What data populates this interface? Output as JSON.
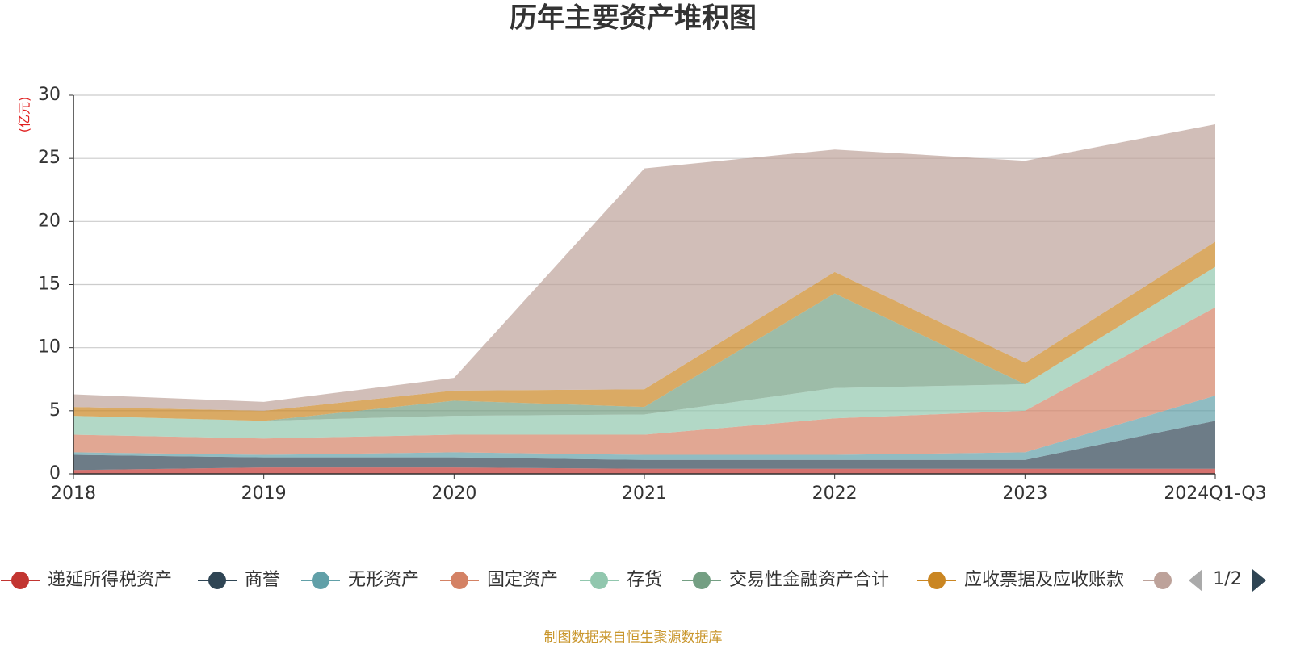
{
  "chart_data": {
    "type": "stacked_area",
    "title": "历年主要资产堆积图",
    "y_label": "(亿元)",
    "categories": [
      "2018",
      "2019",
      "2020",
      "2021",
      "2022",
      "2023",
      "2024Q1-Q3"
    ],
    "series": [
      {
        "name": "递延所得税资产",
        "color": "#c23531",
        "values": [
          0.3,
          0.5,
          0.5,
          0.4,
          0.4,
          0.4,
          0.4
        ]
      },
      {
        "name": "商誉",
        "color": "#2f4554",
        "values": [
          1.2,
          0.8,
          0.8,
          0.7,
          0.7,
          0.7,
          3.8
        ]
      },
      {
        "name": "无形资产",
        "color": "#61a0a8",
        "values": [
          0.2,
          0.2,
          0.4,
          0.4,
          0.4,
          0.6,
          2.0
        ]
      },
      {
        "name": "固定资产",
        "color": "#d48265",
        "values": [
          1.4,
          1.3,
          1.4,
          1.6,
          2.9,
          3.3,
          7.0
        ]
      },
      {
        "name": "存货",
        "color": "#91c7ae",
        "values": [
          1.5,
          1.4,
          1.5,
          1.6,
          2.4,
          2.1,
          3.2
        ]
      },
      {
        "name": "交易性金融资产合计",
        "color": "#749f83",
        "values": [
          0,
          0,
          1.2,
          0.6,
          7.5,
          0,
          0
        ]
      },
      {
        "name": "应收票据及应收账款",
        "color": "#ca8622",
        "values": [
          0.7,
          0.8,
          0.8,
          1.4,
          1.7,
          1.7,
          2.0
        ]
      },
      {
        "color": "#bda29a",
        "values": [
          1.0,
          0.7,
          1.0,
          17.5,
          9.7,
          16.0,
          9.3
        ]
      }
    ],
    "ylim": [
      0,
      30
    ],
    "yticks": [
      0,
      5,
      10,
      15,
      20,
      25,
      30
    ],
    "grid": true,
    "legend_page": "1/2",
    "source": "制图数据来自恒生聚源数据库"
  }
}
